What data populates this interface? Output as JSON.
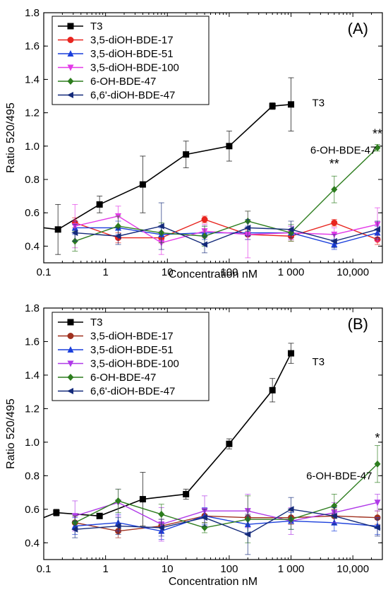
{
  "chart_data": [
    {
      "type": "line",
      "panel_label": "(A)",
      "xlabel": "Concentration nM",
      "ylabel": "Ratio 520/495",
      "xscale": "log",
      "xlim": [
        0.1,
        30000
      ],
      "ylim": [
        0.3,
        1.8
      ],
      "x_ticks": [
        0.1,
        1,
        10,
        100,
        1000,
        10000
      ],
      "x_tick_labels": [
        "0.1",
        "1",
        "10",
        "100",
        "1 000",
        "10,000"
      ],
      "y_ticks": [
        0.4,
        0.6,
        0.8,
        1.0,
        1.2,
        1.4,
        1.6,
        1.8
      ],
      "y_tick_labels": [
        "0.4",
        "0.6",
        "0.8",
        "1.0",
        "1.2",
        "1.4",
        "1.6",
        "1.8"
      ],
      "legend_position": "top-left",
      "series": [
        {
          "name": "T3",
          "color": "#000000",
          "marker": "square",
          "x": [
            0.17,
            0.8,
            4,
            20,
            100,
            500,
            1000
          ],
          "y": [
            0.5,
            0.65,
            0.77,
            0.95,
            1.0,
            1.24,
            1.25
          ],
          "err": [
            0.15,
            0.05,
            0.17,
            0.08,
            0.09,
            0.02,
            0.16
          ]
        },
        {
          "name": "3,5-diOH-BDE-17",
          "color": "#e8251f",
          "marker": "circle",
          "x": [
            0.32,
            1.6,
            8,
            40,
            200,
            1000,
            5000,
            25000
          ],
          "y": [
            0.54,
            0.45,
            0.45,
            0.56,
            0.47,
            0.46,
            0.54,
            0.44
          ],
          "err": [
            0.03,
            0.03,
            0.03,
            0.02,
            0.03,
            0.03,
            0.02,
            0.03
          ]
        },
        {
          "name": "3,5-diOH-BDE-51",
          "color": "#1a3fdc",
          "marker": "triangle-up",
          "x": [
            0.32,
            1.6,
            8,
            40,
            200,
            1000,
            5000,
            25000
          ],
          "y": [
            0.51,
            0.51,
            0.47,
            0.48,
            0.48,
            0.48,
            0.41,
            0.48
          ],
          "err": [
            0.04,
            0.04,
            0.04,
            0.04,
            0.04,
            0.04,
            0.03,
            0.04
          ]
        },
        {
          "name": "3,5-diOH-BDE-100",
          "color": "#e33ae8",
          "marker": "triangle-down",
          "x": [
            0.32,
            1.6,
            8,
            40,
            200,
            1000,
            5000,
            25000
          ],
          "y": [
            0.52,
            0.58,
            0.42,
            0.49,
            0.47,
            0.48,
            0.47,
            0.53
          ],
          "err": [
            0.13,
            0.06,
            0.07,
            0.04,
            0.14,
            0.04,
            0.04,
            0.1
          ]
        },
        {
          "name": "6-OH-BDE-47",
          "color": "#2d7d1e",
          "marker": "diamond",
          "x": [
            0.32,
            1.6,
            8,
            40,
            200,
            1000,
            5000,
            25000
          ],
          "y": [
            0.43,
            0.52,
            0.48,
            0.46,
            0.55,
            0.48,
            0.74,
            0.99
          ],
          "err": [
            0.06,
            0.06,
            0.06,
            0.06,
            0.06,
            0.05,
            0.08,
            0.02
          ]
        },
        {
          "name": "6,6'-diOH-BDE-47",
          "color": "#142a7a",
          "marker": "triangle-left",
          "x": [
            0.32,
            1.6,
            8,
            40,
            200,
            1000,
            5000,
            25000
          ],
          "y": [
            0.48,
            0.46,
            0.52,
            0.41,
            0.51,
            0.5,
            0.43,
            0.5
          ],
          "err": [
            0.05,
            0.05,
            0.14,
            0.05,
            0.05,
            0.05,
            0.04,
            0.05
          ]
        }
      ],
      "annotations": [
        {
          "text": "T3",
          "x": 2200,
          "y": 1.26
        },
        {
          "text": "6-OH-BDE-47",
          "x": 7000,
          "y": 0.975
        },
        {
          "text": "**",
          "x": 5000,
          "y": 0.89
        },
        {
          "text": "**",
          "x": 25000,
          "y": 1.07
        }
      ]
    },
    {
      "type": "line",
      "panel_label": "(B)",
      "xlabel": "Concentration nM",
      "ylabel": "Ratio 520/495",
      "xscale": "log",
      "xlim": [
        0.1,
        30000
      ],
      "ylim": [
        0.3,
        1.8
      ],
      "x_ticks": [
        0.1,
        1,
        10,
        100,
        1000,
        10000
      ],
      "x_tick_labels": [
        "0.1",
        "1",
        "10",
        "100",
        "1 000",
        "10,000"
      ],
      "y_ticks": [
        0.4,
        0.6,
        0.8,
        1.0,
        1.2,
        1.4,
        1.6,
        1.8
      ],
      "y_tick_labels": [
        "0.4",
        "0.6",
        "0.8",
        "1.0",
        "1.2",
        "1.4",
        "1.6",
        "1.8"
      ],
      "legend_position": "top-left",
      "series": [
        {
          "name": "T3",
          "color": "#000000",
          "marker": "square",
          "x": [
            0.16,
            0.8,
            4,
            20,
            100,
            500,
            1000
          ],
          "y": [
            0.58,
            0.56,
            0.66,
            0.69,
            0.99,
            1.31,
            1.53
          ],
          "err": [
            0.02,
            0.01,
            0.16,
            0.03,
            0.03,
            0.07,
            0.06
          ]
        },
        {
          "name": "3,5-diOH-BDE-17",
          "color": "#a0311f",
          "marker": "circle",
          "x": [
            0.32,
            1.6,
            8,
            40,
            200,
            1000,
            5000,
            25000
          ],
          "y": [
            0.52,
            0.47,
            0.5,
            0.56,
            0.55,
            0.55,
            0.56,
            0.55
          ],
          "err": [
            0.04,
            0.04,
            0.04,
            0.04,
            0.04,
            0.04,
            0.04,
            0.04
          ]
        },
        {
          "name": "3,5-diOH-BDE-51",
          "color": "#1a3fdc",
          "marker": "triangle-up",
          "x": [
            0.32,
            1.6,
            8,
            40,
            200,
            1000,
            5000,
            25000
          ],
          "y": [
            0.5,
            0.52,
            0.47,
            0.56,
            0.51,
            0.53,
            0.52,
            0.5
          ],
          "err": [
            0.05,
            0.05,
            0.05,
            0.05,
            0.05,
            0.05,
            0.05,
            0.05
          ]
        },
        {
          "name": "3,5-diOH-BDE-100",
          "color": "#b03ae8",
          "marker": "triangle-down",
          "x": [
            0.32,
            1.6,
            8,
            40,
            200,
            1000,
            5000,
            25000
          ],
          "y": [
            0.56,
            0.64,
            0.51,
            0.59,
            0.59,
            0.53,
            0.58,
            0.64
          ],
          "err": [
            0.09,
            0.08,
            0.1,
            0.09,
            0.1,
            0.08,
            0.06,
            0.05
          ]
        },
        {
          "name": "6-OH-BDE-47",
          "color": "#2d7d1e",
          "marker": "diamond",
          "x": [
            0.32,
            1.6,
            8,
            40,
            200,
            1000,
            5000,
            25000
          ],
          "y": [
            0.52,
            0.65,
            0.57,
            0.49,
            0.54,
            0.54,
            0.62,
            0.87
          ],
          "err": [
            0.04,
            0.07,
            0.06,
            0.03,
            0.14,
            0.06,
            0.07,
            0.11
          ]
        },
        {
          "name": "6,6'-diOH-BDE-47",
          "color": "#142a7a",
          "marker": "triangle-left",
          "x": [
            0.32,
            1.6,
            8,
            40,
            200,
            1000,
            5000,
            25000
          ],
          "y": [
            0.48,
            0.5,
            0.49,
            0.55,
            0.45,
            0.6,
            0.56,
            0.49
          ],
          "err": [
            0.05,
            0.05,
            0.05,
            0.05,
            0.12,
            0.07,
            0.05,
            0.05
          ]
        }
      ],
      "annotations": [
        {
          "text": "T3",
          "x": 2200,
          "y": 1.48
        },
        {
          "text": "6-OH-BDE-47",
          "x": 6000,
          "y": 0.8
        },
        {
          "text": "*",
          "x": 25000,
          "y": 1.02
        }
      ]
    }
  ]
}
